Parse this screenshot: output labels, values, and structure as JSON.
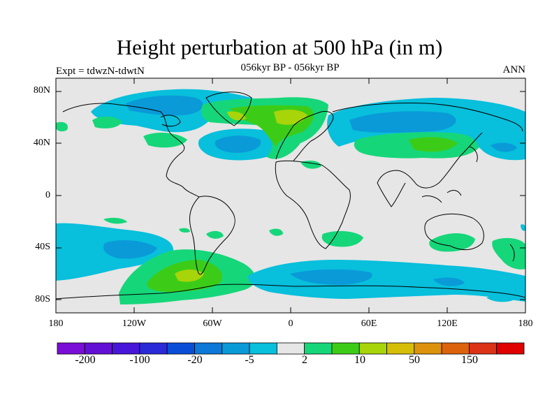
{
  "title": "Height perturbation at 500 hPa (in m)",
  "subtitle": "056kyr BP - 056kyr BP",
  "experiment": "Expt = tdwzN-tdwtN",
  "season": "ANN",
  "lat_ticks": [
    "80N",
    "40N",
    "0",
    "40S",
    "80S"
  ],
  "lon_ticks": [
    "180",
    "120W",
    "60W",
    "0",
    "60E",
    "120E",
    "180"
  ],
  "colorbar": {
    "colors": [
      "#7a0ed6",
      "#6310d6",
      "#4816d8",
      "#2a2ad8",
      "#0a4ed8",
      "#0c78d8",
      "#0a9ad8",
      "#08bfdc",
      "#e6e6e6",
      "#16d67a",
      "#3ccc18",
      "#a8d40a",
      "#d6be08",
      "#dc920c",
      "#dc620c",
      "#dc3216",
      "#e00000"
    ],
    "labels": [
      "-200",
      "-100",
      "-20",
      "-5",
      "2",
      "10",
      "50",
      "150"
    ]
  },
  "palette": {
    "neutral": "#e6e6e6",
    "neg_light": "#08bfdc",
    "neg_mid": "#0a9ad8",
    "pos_light": "#16d67a",
    "pos_mid": "#3ccc18",
    "pos_strong": "#a8d40a"
  }
}
